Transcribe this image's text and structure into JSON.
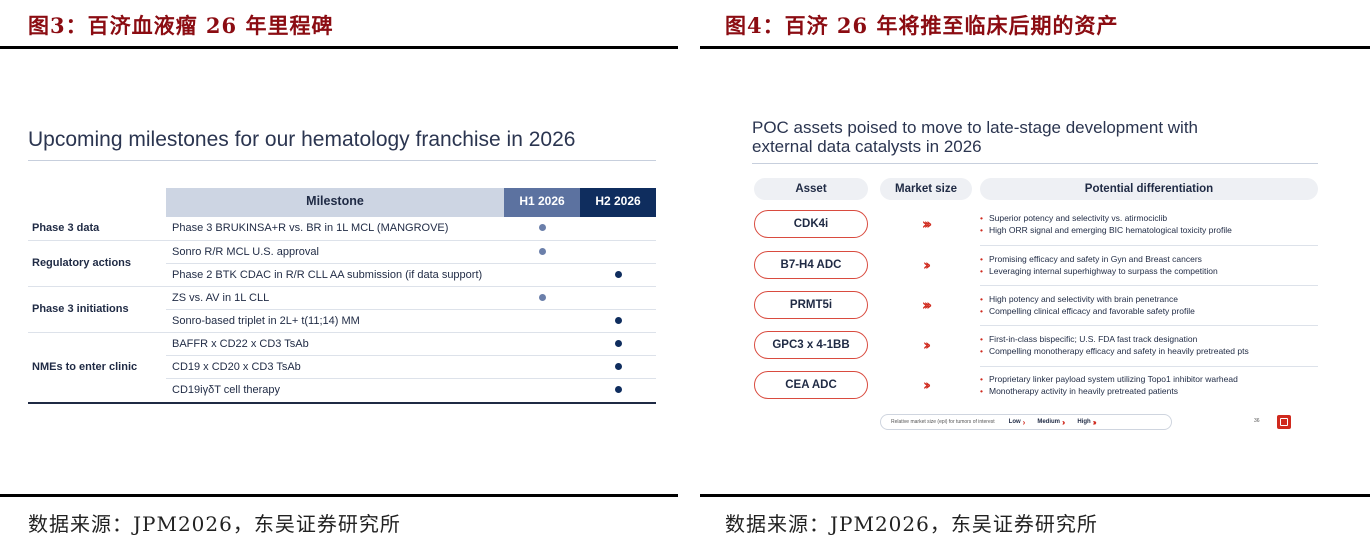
{
  "left_figure": {
    "caption": "图3：百济血液瘤 26 年里程碑",
    "source": "数据来源：JPM2026，东吴证券研究所",
    "slide": {
      "title": "Upcoming milestones for our hematology franchise in 2026",
      "headers": {
        "milestone": "Milestone",
        "h1": "H1 2026",
        "h2": "H2 2026"
      },
      "groups": [
        {
          "category": "Phase 3 data",
          "rows": [
            {
              "milestone": "Phase 3 BRUKINSA+R vs. BR in 1L MCL (MANGROVE)",
              "h1": true,
              "h2": false
            }
          ]
        },
        {
          "category": "Regulatory actions",
          "rows": [
            {
              "milestone": "Sonro R/R MCL U.S. approval",
              "h1": true,
              "h2": false
            },
            {
              "milestone": "Phase 2 BTK CDAC in R/R CLL AA submission (if data support)",
              "h1": false,
              "h2": true
            }
          ]
        },
        {
          "category": "Phase 3 initiations",
          "rows": [
            {
              "milestone": "ZS vs. AV in 1L CLL",
              "h1": true,
              "h2": false
            },
            {
              "milestone": "Sonro-based triplet in 2L+ t(11;14) MM",
              "h1": false,
              "h2": true
            }
          ]
        },
        {
          "category": "NMEs to enter clinic",
          "rows": [
            {
              "milestone": "BAFFR x CD22 x CD3 TsAb",
              "h1": false,
              "h2": true
            },
            {
              "milestone": "CD19 x CD20 x CD3 TsAb",
              "h1": false,
              "h2": true
            },
            {
              "milestone": "CD19iγδT cell therapy",
              "h1": false,
              "h2": true
            }
          ]
        }
      ]
    }
  },
  "right_figure": {
    "caption": "图4：百济 26  年将推至临床后期的资产",
    "source": "数据来源：JPM2026，东吴证券研究所",
    "slide": {
      "title_line1": "POC assets poised to move to late-stage development with",
      "title_line2": "external data catalysts in 2026",
      "headers": {
        "asset": "Asset",
        "market": "Market size",
        "diff": "Potential differentiation"
      },
      "assets": [
        {
          "name": "CDK4i",
          "market": "›››",
          "level": "High",
          "points": [
            "Superior potency and selectivity vs. atirmociclib",
            "High ORR signal and emerging BIC hematological toxicity profile"
          ]
        },
        {
          "name": "B7-H4 ADC",
          "market": "››",
          "level": "Medium",
          "points": [
            "Promising efficacy and safety in Gyn and Breast cancers",
            "Leveraging internal superhighway to surpass the competition"
          ]
        },
        {
          "name": "PRMT5i",
          "market": "›››",
          "level": "High",
          "points": [
            "High potency and selectivity with brain penetrance",
            "Compelling clinical efficacy and favorable safety profile"
          ]
        },
        {
          "name": "GPC3 x 4-1BB",
          "market": "››",
          "level": "Medium",
          "points": [
            "First-in-class bispecific; U.S. FDA fast track designation",
            "Compelling monotherapy efficacy and safety in heavily pretreated pts"
          ]
        },
        {
          "name": "CEA ADC",
          "market": "››",
          "level": "Medium",
          "points": [
            "Proprietary linker payload system utilizing Topo1 inhibitor warhead",
            "Monotherapy activity in heavily pretreated patients"
          ]
        }
      ],
      "legend": {
        "label": "Relative market size (epi) for tumors of interest",
        "low": "Low",
        "low_chev": "›",
        "medium": "Medium",
        "medium_chev": "››",
        "high": "High",
        "high_chev": "›››"
      },
      "page_number": "36",
      "bullet": "•"
    }
  },
  "colors": {
    "caption": "#8b0c12",
    "accent_red": "#d02a1e",
    "navy": "#0f2d5e",
    "mid_blue": "#5c72a0",
    "header_grey": "#cdd5e3"
  }
}
